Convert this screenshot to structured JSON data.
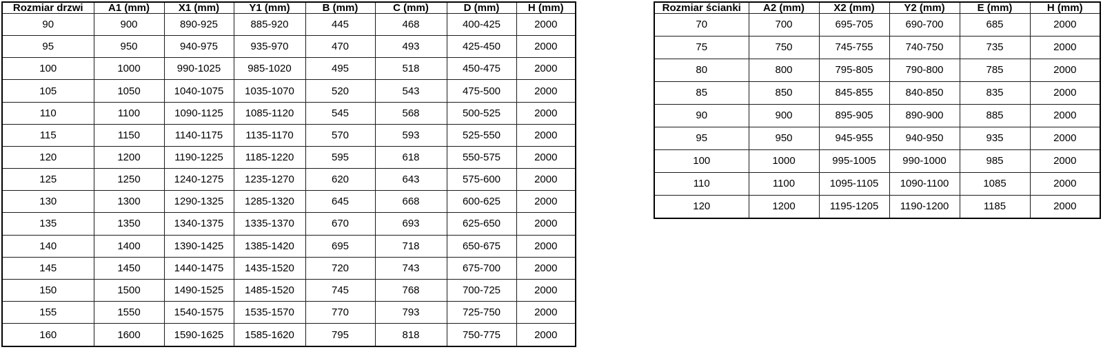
{
  "page": {
    "background_color": "#ffffff",
    "border_color": "#000000",
    "text_color": "#000000"
  },
  "tables": [
    {
      "name": "door-dimensions-table",
      "headers": [
        "Rozmiar drzwi",
        "A1 (mm)",
        "X1 (mm)",
        "Y1 (mm)",
        "B (mm)",
        "C (mm)",
        "D (mm)",
        "H (mm)"
      ],
      "rows": [
        [
          "90",
          "900",
          "890-925",
          "885-920",
          "445",
          "468",
          "400-425",
          "2000"
        ],
        [
          "95",
          "950",
          "940-975",
          "935-970",
          "470",
          "493",
          "425-450",
          "2000"
        ],
        [
          "100",
          "1000",
          "990-1025",
          "985-1020",
          "495",
          "518",
          "450-475",
          "2000"
        ],
        [
          "105",
          "1050",
          "1040-1075",
          "1035-1070",
          "520",
          "543",
          "475-500",
          "2000"
        ],
        [
          "110",
          "1100",
          "1090-1125",
          "1085-1120",
          "545",
          "568",
          "500-525",
          "2000"
        ],
        [
          "115",
          "1150",
          "1140-1175",
          "1135-1170",
          "570",
          "593",
          "525-550",
          "2000"
        ],
        [
          "120",
          "1200",
          "1190-1225",
          "1185-1220",
          "595",
          "618",
          "550-575",
          "2000"
        ],
        [
          "125",
          "1250",
          "1240-1275",
          "1235-1270",
          "620",
          "643",
          "575-600",
          "2000"
        ],
        [
          "130",
          "1300",
          "1290-1325",
          "1285-1320",
          "645",
          "668",
          "600-625",
          "2000"
        ],
        [
          "135",
          "1350",
          "1340-1375",
          "1335-1370",
          "670",
          "693",
          "625-650",
          "2000"
        ],
        [
          "140",
          "1400",
          "1390-1425",
          "1385-1420",
          "695",
          "718",
          "650-675",
          "2000"
        ],
        [
          "145",
          "1450",
          "1440-1475",
          "1435-1520",
          "720",
          "743",
          "675-700",
          "2000"
        ],
        [
          "150",
          "1500",
          "1490-1525",
          "1485-1520",
          "745",
          "768",
          "700-725",
          "2000"
        ],
        [
          "155",
          "1550",
          "1540-1575",
          "1535-1570",
          "770",
          "793",
          "725-750",
          "2000"
        ],
        [
          "160",
          "1600",
          "1590-1625",
          "1585-1620",
          "795",
          "818",
          "750-775",
          "2000"
        ]
      ]
    },
    {
      "name": "wall-panel-dimensions-table",
      "headers": [
        "Rozmiar ścianki",
        "A2 (mm)",
        "X2 (mm)",
        "Y2 (mm)",
        "E (mm)",
        "H (mm)"
      ],
      "rows": [
        [
          "70",
          "700",
          "695-705",
          "690-700",
          "685",
          "2000"
        ],
        [
          "75",
          "750",
          "745-755",
          "740-750",
          "735",
          "2000"
        ],
        [
          "80",
          "800",
          "795-805",
          "790-800",
          "785",
          "2000"
        ],
        [
          "85",
          "850",
          "845-855",
          "840-850",
          "835",
          "2000"
        ],
        [
          "90",
          "900",
          "895-905",
          "890-900",
          "885",
          "2000"
        ],
        [
          "95",
          "950",
          "945-955",
          "940-950",
          "935",
          "2000"
        ],
        [
          "100",
          "1000",
          "995-1005",
          "990-1000",
          "985",
          "2000"
        ],
        [
          "110",
          "1100",
          "1095-1105",
          "1090-1100",
          "1085",
          "2000"
        ],
        [
          "120",
          "1200",
          "1195-1205",
          "1190-1200",
          "1185",
          "2000"
        ]
      ]
    }
  ]
}
